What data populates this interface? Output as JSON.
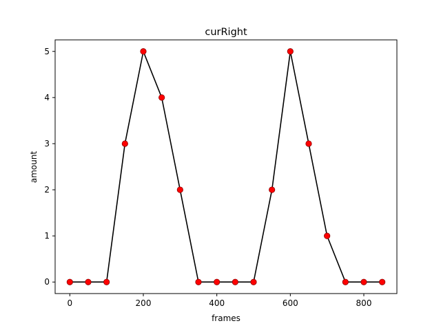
{
  "chart_data": {
    "type": "line",
    "title": "curRight",
    "xlabel": "frames",
    "ylabel": "amount",
    "xlim": [
      -40,
      890
    ],
    "ylim": [
      -0.25,
      5.25
    ],
    "xticks": [
      0,
      200,
      400,
      600,
      800
    ],
    "yticks": [
      0,
      1,
      2,
      3,
      4,
      5
    ],
    "grid": false,
    "series": [
      {
        "line_color": "#000000",
        "marker_color": "#ff0000",
        "marker_edge_color": "#8b0000",
        "x": [
          0,
          50,
          100,
          150,
          200,
          250,
          300,
          350,
          400,
          450,
          500,
          550,
          600,
          650,
          700,
          750,
          800,
          850
        ],
        "y": [
          0,
          0,
          0,
          3,
          5,
          4,
          2,
          0,
          0,
          0,
          0,
          2,
          5,
          3,
          1,
          0,
          0,
          0
        ]
      }
    ]
  }
}
